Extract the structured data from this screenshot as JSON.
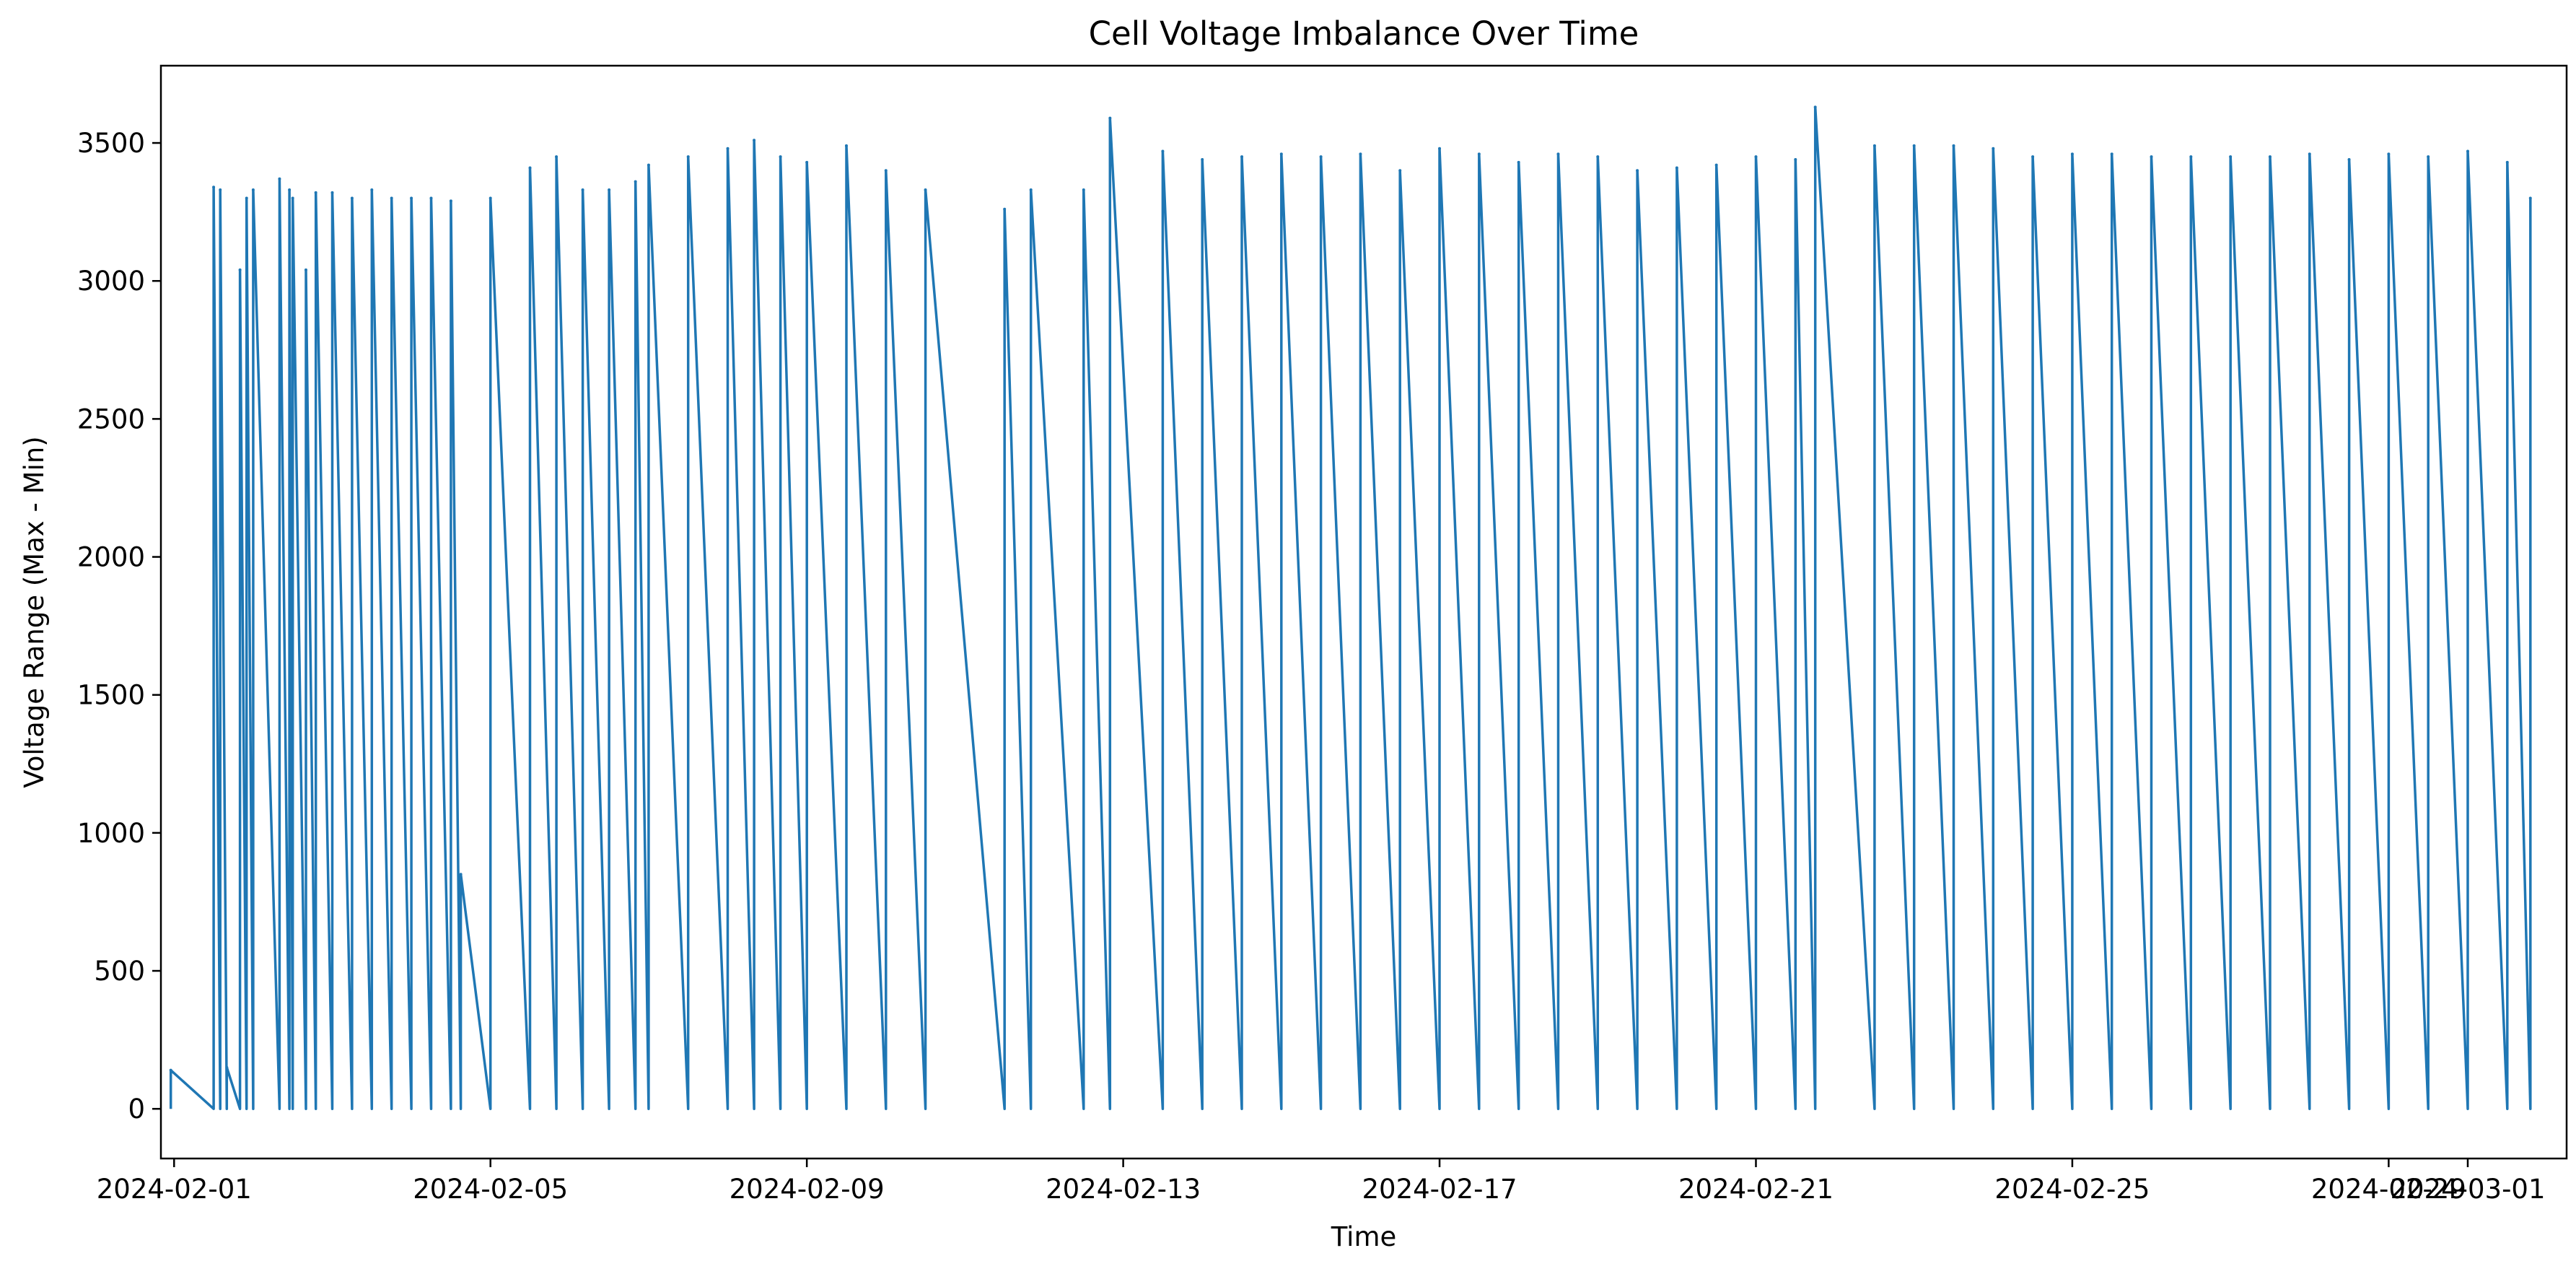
{
  "chart_data": {
    "type": "line",
    "title": "Cell Voltage Imbalance Over Time",
    "xlabel": "Time",
    "ylabel": "Voltage Range (Max - Min)",
    "xlim": [
      "2024-01-31T20:00",
      "2024-03-02T06:00"
    ],
    "ylim": [
      -180,
      3780
    ],
    "y_ticks": [
      0,
      500,
      1000,
      1500,
      2000,
      2500,
      3000,
      3500
    ],
    "x_ticks": [
      "2024-02-01",
      "2024-02-05",
      "2024-02-09",
      "2024-02-13",
      "2024-02-17",
      "2024-02-21",
      "2024-02-25",
      "2024-02-29",
      "2024-03-01"
    ],
    "grid": false,
    "legend": "none",
    "line_color": "#1f77b4",
    "series": [
      {
        "x": [
          "2024-01-31T23:00",
          "2024-02-01T12:00",
          "2024-02-01T14:00",
          "2024-02-01T16:00",
          "2024-02-01T20:00",
          "2024-02-01T22:00",
          "2024-02-02T00:00",
          "2024-02-02T08:00",
          "2024-02-02T11:00",
          "2024-02-02T12:00",
          "2024-02-02T16:00",
          "2024-02-02T19:00",
          "2024-02-03T00:00",
          "2024-02-03T06:00",
          "2024-02-03T12:00",
          "2024-02-03T18:00",
          "2024-02-04T00:00",
          "2024-02-04T06:00",
          "2024-02-04T12:00",
          "2024-02-04T15:00",
          "2024-02-05T00:00",
          "2024-02-05T12:00",
          "2024-02-05T20:00",
          "2024-02-06T04:00",
          "2024-02-06T12:00",
          "2024-02-06T20:00",
          "2024-02-07T00:00",
          "2024-02-07T12:00",
          "2024-02-08T00:00",
          "2024-02-08T08:00",
          "2024-02-08T16:00",
          "2024-02-09T00:00",
          "2024-02-09T12:00",
          "2024-02-10T00:00",
          "2024-02-10T12:00",
          "2024-02-11T12:00",
          "2024-02-11T20:00",
          "2024-02-12T12:00",
          "2024-02-12T20:00",
          "2024-02-13T12:00",
          "2024-02-14T00:00",
          "2024-02-14T12:00",
          "2024-02-15T00:00",
          "2024-02-15T12:00",
          "2024-02-16T00:00",
          "2024-02-16T12:00",
          "2024-02-17T00:00",
          "2024-02-17T12:00",
          "2024-02-18T00:00",
          "2024-02-18T12:00",
          "2024-02-19T00:00",
          "2024-02-19T12:00",
          "2024-02-20T00:00",
          "2024-02-20T12:00",
          "2024-02-21T00:00",
          "2024-02-21T12:00",
          "2024-02-21T18:00",
          "2024-02-22T12:00",
          "2024-02-23T00:00",
          "2024-02-23T12:00",
          "2024-02-24T00:00",
          "2024-02-24T12:00",
          "2024-02-25T00:00",
          "2024-02-25T12:00",
          "2024-02-26T00:00",
          "2024-02-26T12:00",
          "2024-02-27T00:00",
          "2024-02-27T12:00",
          "2024-02-28T00:00",
          "2024-02-28T12:00",
          "2024-02-29T00:00",
          "2024-02-29T12:00",
          "2024-03-01T00:00",
          "2024-03-01T12:00",
          "2024-03-01T19:00"
        ],
        "values": [
          140,
          3340,
          3330,
          150,
          3040,
          3300,
          3330,
          3370,
          3330,
          3300,
          3040,
          3320,
          3320,
          3300,
          3330,
          3300,
          3300,
          3300,
          3290,
          850,
          3300,
          3410,
          3450,
          3330,
          3330,
          3360,
          3420,
          3450,
          3480,
          3510,
          3450,
          3430,
          3490,
          3400,
          3330,
          3260,
          3330,
          3330,
          3590,
          3470,
          3440,
          3450,
          3460,
          3450,
          3460,
          3400,
          3480,
          3460,
          3430,
          3460,
          3450,
          3400,
          3410,
          3420,
          3450,
          3440,
          3630,
          3490,
          3490,
          3490,
          3480,
          3450,
          3460,
          3460,
          3450,
          3450,
          3450,
          3450,
          3460,
          3440,
          3460,
          3450,
          3470,
          3430,
          3300
        ]
      }
    ]
  }
}
